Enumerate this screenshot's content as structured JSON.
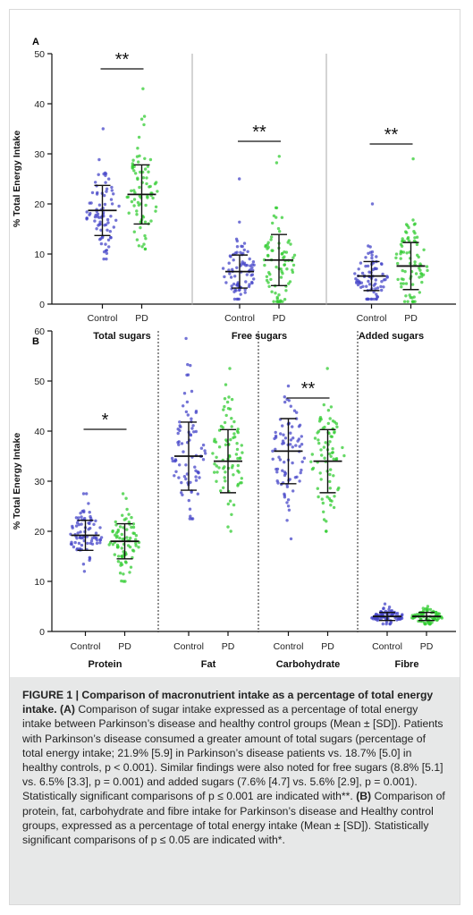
{
  "colors": {
    "control": "#4646c8",
    "pd": "#33cc33"
  },
  "chart_data": [
    {
      "panel": "A",
      "type": "scatter",
      "ylabel": "% Total Energy Intake",
      "ylim": [
        0,
        50
      ],
      "yticks": [
        0,
        10,
        20,
        30,
        40,
        50
      ],
      "separator": "solid",
      "groups": [
        {
          "label": "Total sugars",
          "series": [
            {
              "name": "Control",
              "mean": 18.7,
              "sd": 5.0,
              "min": 9,
              "max": 35
            },
            {
              "name": "PD",
              "mean": 21.9,
              "sd": 5.9,
              "min": 11,
              "max": 43
            }
          ],
          "significance": "**"
        },
        {
          "label": "Free sugars",
          "series": [
            {
              "name": "Control",
              "mean": 6.5,
              "sd": 3.3,
              "min": 1,
              "max": 25
            },
            {
              "name": "PD",
              "mean": 8.8,
              "sd": 5.1,
              "min": 0.5,
              "max": 29.5
            }
          ],
          "significance": "**"
        },
        {
          "label": "Added sugars",
          "series": [
            {
              "name": "Control",
              "mean": 5.6,
              "sd": 2.9,
              "min": 1,
              "max": 20
            },
            {
              "name": "PD",
              "mean": 7.6,
              "sd": 4.7,
              "min": 0.5,
              "max": 29
            }
          ],
          "significance": "**"
        }
      ]
    },
    {
      "panel": "B",
      "type": "scatter",
      "ylabel": "% Total Energy Intake",
      "ylim": [
        0,
        60
      ],
      "yticks": [
        0,
        10,
        20,
        30,
        40,
        50,
        60
      ],
      "separator": "dotted",
      "groups": [
        {
          "label": "Protein",
          "series": [
            {
              "name": "Control",
              "mean": 19.2,
              "sd": 3.0,
              "min": 12,
              "max": 27.5
            },
            {
              "name": "PD",
              "mean": 18.0,
              "sd": 3.5,
              "min": 10,
              "max": 27.5
            }
          ],
          "significance": "*"
        },
        {
          "label": "Fat",
          "series": [
            {
              "name": "Control",
              "mean": 35.0,
              "sd": 6.8,
              "min": 22.5,
              "max": 58.5
            },
            {
              "name": "PD",
              "mean": 34.0,
              "sd": 6.3,
              "min": 20,
              "max": 52.5
            }
          ],
          "significance": ""
        },
        {
          "label": "Carbohydrate",
          "series": [
            {
              "name": "Control",
              "mean": 36.0,
              "sd": 6.5,
              "min": 18.5,
              "max": 49
            },
            {
              "name": "PD",
              "mean": 34.0,
              "sd": 6.3,
              "min": 20,
              "max": 52.5
            }
          ],
          "significance": "**"
        },
        {
          "label": "Fibre",
          "series": [
            {
              "name": "Control",
              "mean": 3.0,
              "sd": 0.8,
              "min": 1.5,
              "max": 5.5
            },
            {
              "name": "PD",
              "mean": 3.0,
              "sd": 0.8,
              "min": 1.5,
              "max": 5
            }
          ],
          "significance": ""
        }
      ]
    }
  ],
  "caption": {
    "figure_label": "FIGURE 1 |",
    "title": "Comparison of macronutrient intake as a percentage of total energy intake.",
    "a_label": "(A)",
    "a_text": "Comparison of sugar intake expressed as a percentage of total energy intake between Parkinson’s disease and healthy control groups (Mean ± [SD]). Patients with Parkinson’s disease consumed a greater amount of total sugars (percentage of total energy intake; 21.9% [5.9] in Parkinson’s disease patients vs. 18.7% [5.0] in healthy controls, p < 0.001). Similar findings were also noted for free sugars (8.8% [5.1] vs. 6.5% [3.3], p = 0.001) and added sugars (7.6% [4.7] vs. 5.6% [2.9], p = 0.001). Statistically significant comparisons of p ≤ 0.001 are indicated with**.",
    "b_label": "(B)",
    "b_text": "Comparison of protein, fat, carbohydrate and fibre intake for Parkinson’s disease and Healthy control groups, expressed as a percentage of total energy intake (Mean ± [SD]). Statistically significant comparisons of p ≤ 0.05 are indicated with*."
  }
}
